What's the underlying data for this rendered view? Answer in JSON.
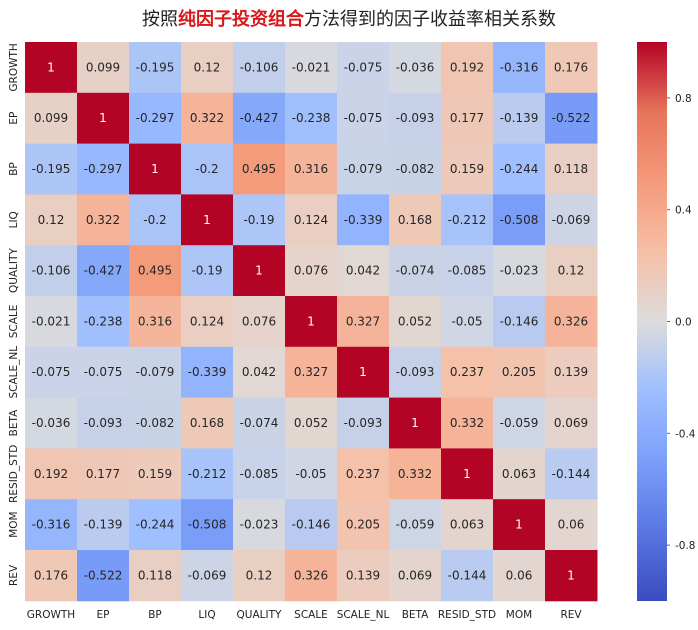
{
  "title": {
    "prefix": "按照",
    "highlight": "纯因子投资组合",
    "suffix": "方法得到的因子收益率相关系数",
    "highlight_color": "#d7191c"
  },
  "chart_data": {
    "type": "heatmap",
    "title": "按照纯因子投资组合方法得到的因子收益率相关系数",
    "colormap": "coolwarm",
    "vmin": -1,
    "vmax": 1,
    "x_labels": [
      "GROWTH",
      "EP",
      "BP",
      "LIQ",
      "QUALITY",
      "SCALE",
      "SCALE_NL",
      "BETA",
      "RESID_STD",
      "MOM",
      "REV"
    ],
    "y_labels": [
      "GROWTH",
      "EP",
      "BP",
      "LIQ",
      "QUALITY",
      "SCALE",
      "SCALE_NL",
      "BETA",
      "RESID_STD",
      "MOM",
      "REV"
    ],
    "values": [
      [
        1,
        0.099,
        -0.195,
        0.12,
        -0.106,
        -0.021,
        -0.075,
        -0.036,
        0.192,
        -0.316,
        0.176
      ],
      [
        0.099,
        1,
        -0.297,
        0.322,
        -0.427,
        -0.238,
        -0.075,
        -0.093,
        0.177,
        -0.139,
        -0.522
      ],
      [
        -0.195,
        -0.297,
        1,
        -0.2,
        0.495,
        0.316,
        -0.079,
        -0.082,
        0.159,
        -0.244,
        0.118
      ],
      [
        0.12,
        0.322,
        -0.2,
        1,
        -0.19,
        0.124,
        -0.339,
        0.168,
        -0.212,
        -0.508,
        -0.069
      ],
      [
        -0.106,
        -0.427,
        0.495,
        -0.19,
        1,
        0.076,
        0.042,
        -0.074,
        -0.085,
        -0.023,
        0.12
      ],
      [
        -0.021,
        -0.238,
        0.316,
        0.124,
        0.076,
        1,
        0.327,
        0.052,
        -0.05,
        -0.146,
        0.326
      ],
      [
        -0.075,
        -0.075,
        -0.079,
        -0.339,
        0.042,
        0.327,
        1,
        -0.093,
        0.237,
        0.205,
        0.139
      ],
      [
        -0.036,
        -0.093,
        -0.082,
        0.168,
        -0.074,
        0.052,
        -0.093,
        1,
        0.332,
        -0.059,
        0.069
      ],
      [
        0.192,
        0.177,
        0.159,
        -0.212,
        -0.085,
        -0.05,
        0.237,
        0.332,
        1,
        0.063,
        -0.144
      ],
      [
        -0.316,
        -0.139,
        -0.244,
        -0.508,
        -0.023,
        -0.146,
        0.205,
        -0.059,
        0.063,
        1,
        0.06
      ],
      [
        0.176,
        -0.522,
        0.118,
        -0.069,
        0.12,
        0.326,
        0.139,
        0.069,
        -0.144,
        0.06,
        1
      ]
    ],
    "value_labels": [
      [
        "1",
        "0.099",
        "-0.195",
        "0.12",
        "-0.106",
        "-0.021",
        "-0.075",
        "-0.036",
        "0.192",
        "-0.316",
        "0.176"
      ],
      [
        "0.099",
        "1",
        "-0.297",
        "0.322",
        "-0.427",
        "-0.238",
        "-0.075",
        "-0.093",
        "0.177",
        "-0.139",
        "-0.522"
      ],
      [
        "-0.195",
        "-0.297",
        "1",
        "-0.2",
        "0.495",
        "0.316",
        "-0.079",
        "-0.082",
        "0.159",
        "-0.244",
        "0.118"
      ],
      [
        "0.12",
        "0.322",
        "-0.2",
        "1",
        "-0.19",
        "0.124",
        "-0.339",
        "0.168",
        "-0.212",
        "-0.508",
        "-0.069"
      ],
      [
        "-0.106",
        "-0.427",
        "0.495",
        "-0.19",
        "1",
        "0.076",
        "0.042",
        "-0.074",
        "-0.085",
        "-0.023",
        "0.12"
      ],
      [
        "-0.021",
        "-0.238",
        "0.316",
        "0.124",
        "0.076",
        "1",
        "0.327",
        "0.052",
        "-0.05",
        "-0.146",
        "0.326"
      ],
      [
        "-0.075",
        "-0.075",
        "-0.079",
        "-0.339",
        "0.042",
        "0.327",
        "1",
        "-0.093",
        "0.237",
        "0.205",
        "0.139"
      ],
      [
        "-0.036",
        "-0.093",
        "-0.082",
        "0.168",
        "-0.074",
        "0.052",
        "-0.093",
        "1",
        "0.332",
        "-0.059",
        "0.069"
      ],
      [
        "0.192",
        "0.177",
        "0.159",
        "-0.212",
        "-0.085",
        "-0.05",
        "0.237",
        "0.332",
        "1",
        "0.063",
        "-0.144"
      ],
      [
        "-0.316",
        "-0.139",
        "-0.244",
        "-0.508",
        "-0.023",
        "-0.146",
        "0.205",
        "-0.059",
        "0.063",
        "1",
        "0.06"
      ],
      [
        "0.176",
        "-0.522",
        "0.118",
        "-0.069",
        "0.12",
        "0.326",
        "0.139",
        "0.069",
        "-0.144",
        "0.06",
        "1"
      ]
    ],
    "colorbar_ticks": [
      0.8,
      0.4,
      0.0,
      -0.4,
      -0.8
    ],
    "colorbar_tick_labels": [
      "0.8",
      "0.4",
      "0.0",
      "-0.4",
      "-0.8"
    ]
  }
}
